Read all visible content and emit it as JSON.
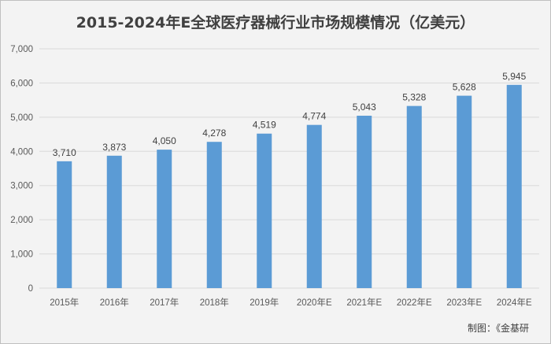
{
  "chart_data": {
    "type": "bar",
    "title": "2015-2024年E全球医疗器械行业市场规模情况（亿美元）",
    "categories": [
      "2015年",
      "2016年",
      "2017年",
      "2018年",
      "2019年",
      "2020年E",
      "2021年E",
      "2022年E",
      "2023年E",
      "2024年E"
    ],
    "values": [
      3710,
      3873,
      4050,
      4278,
      4519,
      4774,
      5043,
      5328,
      5628,
      5945
    ],
    "value_labels": [
      "3,710",
      "3,873",
      "4,050",
      "4,278",
      "4,519",
      "4,774",
      "5,043",
      "5,328",
      "5,628",
      "5,945"
    ],
    "y_ticks": [
      0,
      1000,
      2000,
      3000,
      4000,
      5000,
      6000,
      7000
    ],
    "y_tick_labels": [
      "0",
      "1,000",
      "2,000",
      "3,000",
      "4,000",
      "5,000",
      "6,000",
      "7,000"
    ],
    "ylim": [
      0,
      7000
    ],
    "grid": true,
    "legend": "none",
    "bar_color": "#5b9bd5",
    "grid_color": "#d9d9d9"
  },
  "source": "制图：《金基研"
}
